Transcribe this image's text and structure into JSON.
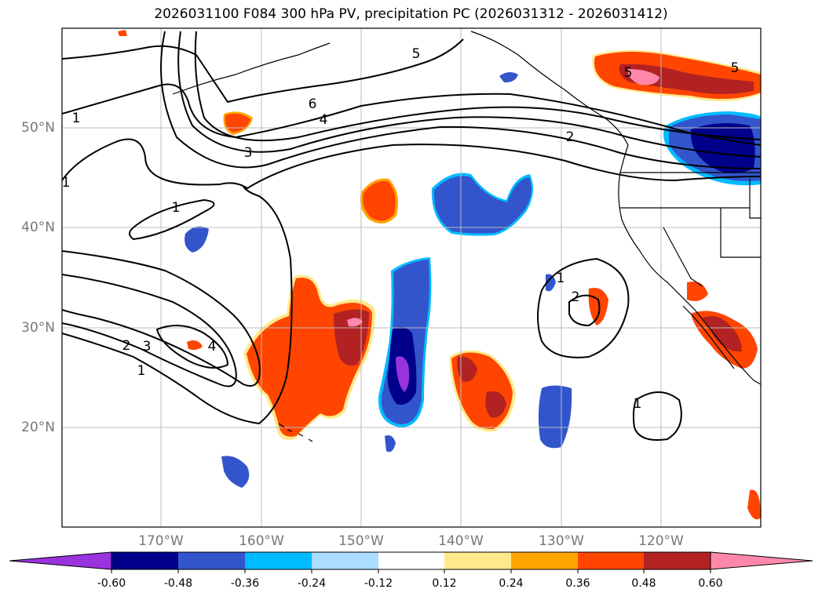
{
  "title": "2026031100 F084 300 hPa PV, precipitation PC (2026031312 - 2026031412)",
  "map": {
    "lon_range": [
      -180,
      -110
    ],
    "lat_range": [
      10,
      60
    ],
    "lat_ticks": [
      {
        "value": 50,
        "label": "50°N"
      },
      {
        "value": 40,
        "label": "40°N"
      },
      {
        "value": 30,
        "label": "30°N"
      },
      {
        "value": 20,
        "label": "20°N"
      }
    ],
    "lon_ticks": [
      {
        "value": -170,
        "label": "170°W"
      },
      {
        "value": -160,
        "label": "160°W"
      },
      {
        "value": -150,
        "label": "150°W"
      },
      {
        "value": -140,
        "label": "140°W"
      },
      {
        "value": -130,
        "label": "130°W"
      },
      {
        "value": -120,
        "label": "120°W"
      }
    ],
    "gridlines": true,
    "contour_labels": [
      "5",
      "6",
      "4",
      "3",
      "2",
      "1",
      "1",
      "1",
      "4",
      "3",
      "2",
      "1",
      "1",
      "2",
      "1",
      "5",
      "5"
    ]
  },
  "colorbar": {
    "labels": [
      "-0.60",
      "-0.48",
      "-0.36",
      "-0.24",
      "-0.12",
      "0.12",
      "0.24",
      "0.36",
      "0.48",
      "0.60"
    ],
    "colors": [
      "#9933dd",
      "#00008b",
      "#3355cc",
      "#00bbff",
      "#aaddff",
      "#ffffff",
      "#ffe98a",
      "#ffa500",
      "#ff4500",
      "#b22222",
      "#ff88aa"
    ]
  }
}
